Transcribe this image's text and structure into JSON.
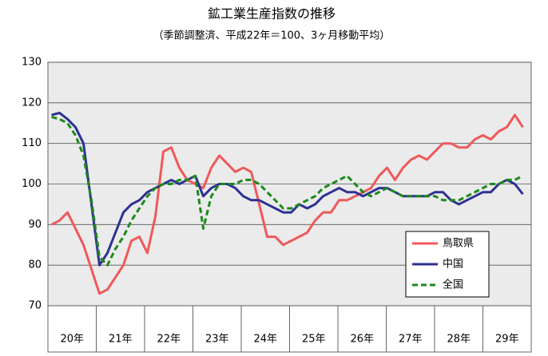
{
  "chart_data": {
    "type": "line",
    "title": "鉱工業生産指数の推移",
    "subtitle": "（季節調整済、平成22年＝100、3ヶ月移動平均）",
    "categories": [
      null,
      null,
      null,
      null,
      null,
      null,
      null,
      null,
      null,
      null,
      null,
      null,
      null,
      null,
      null,
      null,
      null,
      null,
      null,
      null,
      null,
      null,
      null,
      null,
      null,
      null,
      null,
      null,
      null,
      null,
      null,
      null,
      null,
      null,
      null,
      null,
      null,
      null,
      null,
      null,
      null,
      null,
      null,
      null,
      null,
      null,
      null,
      null,
      null,
      null,
      null,
      null,
      null,
      null,
      null,
      null,
      null,
      null,
      null,
      null
    ],
    "year_labels": [
      "20年",
      "21年",
      "22年",
      "23年",
      "24年",
      "25年",
      "26年",
      "27年",
      "28年",
      "29年"
    ],
    "ylim": [
      70,
      130
    ],
    "yticks": [
      70,
      80,
      90,
      100,
      110,
      120,
      130
    ],
    "grid": true,
    "legend": "lower right",
    "series": [
      {
        "name": "鳥取県",
        "color": "#f0585a",
        "dash": false,
        "values": [
          90,
          91,
          93,
          89,
          85,
          79,
          73,
          74,
          77,
          80,
          86,
          87,
          83,
          92,
          108,
          109,
          104,
          101,
          100,
          99,
          104,
          107,
          105,
          103,
          104,
          103,
          95,
          87,
          87,
          85,
          86,
          87,
          88,
          91,
          93,
          93,
          96,
          96,
          97,
          98,
          99,
          102,
          104,
          101,
          104,
          106,
          107,
          106,
          108,
          110,
          110,
          109,
          109,
          111,
          112,
          111,
          113,
          114,
          117,
          114
        ]
      },
      {
        "name": "中国",
        "color": "#2e3192",
        "dash": false,
        "values": [
          117,
          117.5,
          116,
          114,
          110,
          95,
          80,
          83,
          88,
          93,
          95,
          96,
          98,
          99,
          100,
          101,
          100,
          101,
          102,
          97,
          99,
          100,
          100,
          99,
          97,
          96,
          96,
          95,
          94,
          93,
          93,
          95,
          94,
          95,
          97,
          98,
          99,
          98,
          98,
          97,
          98,
          99,
          99,
          98,
          97,
          97,
          97,
          97,
          98,
          98,
          96,
          95,
          96,
          97,
          98,
          98,
          100,
          101,
          100,
          97.5
        ]
      },
      {
        "name": "全国",
        "color": "#1b8a1b",
        "dash": true,
        "values": [
          116.5,
          116,
          115,
          112,
          107,
          96,
          82,
          80,
          84,
          87,
          91,
          94,
          97,
          99,
          100,
          100,
          101,
          101,
          102,
          89,
          97,
          100,
          100,
          100,
          101,
          101,
          100,
          98,
          96,
          94,
          94,
          95,
          96,
          97,
          99,
          100,
          101,
          102,
          100,
          98,
          97,
          98,
          99,
          98,
          97,
          97,
          97,
          97,
          97,
          96,
          96,
          96,
          97,
          98,
          99,
          100,
          100,
          101,
          101,
          102
        ]
      }
    ]
  }
}
